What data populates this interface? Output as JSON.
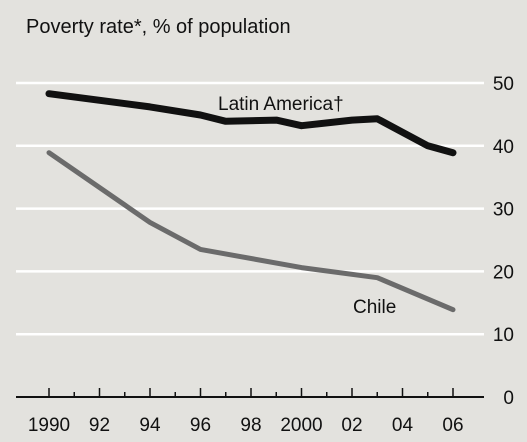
{
  "chart_data": {
    "type": "line",
    "title": "Poverty rate*, % of population",
    "xlabel": "",
    "ylabel": "",
    "ylim": [
      0,
      50
    ],
    "xlim": [
      1990,
      2006
    ],
    "y_ticks": [
      0,
      10,
      20,
      30,
      40,
      50
    ],
    "x_ticks": [
      1990,
      1992,
      1994,
      1996,
      1998,
      2000,
      2002,
      2004,
      2006
    ],
    "x_tick_labels": [
      "1990",
      "92",
      "94",
      "96",
      "98",
      "2000",
      "02",
      "04",
      "06"
    ],
    "grid": true,
    "y_axis_side": "right",
    "series": [
      {
        "name": "Latin America†",
        "color": "#111111",
        "x": [
          1990,
          1994,
          1996,
          1997,
          1999,
          2000,
          2002,
          2003,
          2005,
          2006
        ],
        "values": [
          48.3,
          46.2,
          44.9,
          43.9,
          44.1,
          43.2,
          44.1,
          44.3,
          40.0,
          38.9
        ]
      },
      {
        "name": "Chile",
        "color": "#6b6b6b",
        "x": [
          1990,
          1994,
          1996,
          2000,
          2003,
          2006
        ],
        "values": [
          38.9,
          27.8,
          23.5,
          20.6,
          19.0,
          13.9
        ]
      }
    ]
  }
}
